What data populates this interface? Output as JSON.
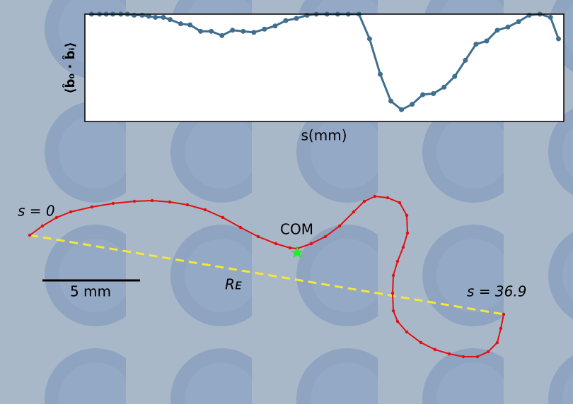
{
  "chart_data": {
    "type": "line",
    "x_label": "s(mm)",
    "y_label": "⟨b̂₀ · b̂ᵢ⟩",
    "x": [
      0.5,
      1.1,
      1.6,
      2.1,
      2.7,
      3.2,
      3.7,
      4.3,
      4.8,
      5.3,
      5.9,
      6.4,
      7.2,
      7.9,
      8.7,
      9.5,
      10.3,
      11.1,
      11.9,
      12.7,
      13.5,
      14.3,
      15.1,
      15.9,
      16.7,
      17.4,
      18.2,
      19.0,
      19.8,
      20.6,
      21.4,
      22.2,
      23.0,
      23.8,
      24.6,
      25.4,
      26.2,
      27.0,
      27.8,
      28.6,
      29.4,
      30.2,
      31.0,
      31.8,
      32.6,
      33.4,
      34.2,
      35.0,
      35.6
    ],
    "series": [
      {
        "color": "#3f6e8e",
        "values": [
          1,
          1,
          1,
          1,
          1,
          1,
          0.99,
          0.99,
          0.98,
          0.97,
          0.97,
          0.95,
          0.91,
          0.9,
          0.84,
          0.84,
          0.8,
          0.85,
          0.84,
          0.83,
          0.86,
          0.89,
          0.94,
          0.96,
          0.99,
          1,
          1,
          1,
          1,
          1,
          0.77,
          0.44,
          0.19,
          0.11,
          0.16,
          0.25,
          0.26,
          0.32,
          0.42,
          0.57,
          0.72,
          0.75,
          0.85,
          0.88,
          0.93,
          0.99,
          1,
          0.97,
          0.77
        ]
      }
    ],
    "xlim": [
      0,
      36
    ],
    "ylim": [
      0,
      1
    ],
    "annotations": [
      {
        "text": "s = 0"
      },
      {
        "text": "COM"
      },
      {
        "text": "Rᴇ"
      },
      {
        "text": "s = 36.9"
      },
      {
        "text": "5 mm"
      }
    ]
  }
}
